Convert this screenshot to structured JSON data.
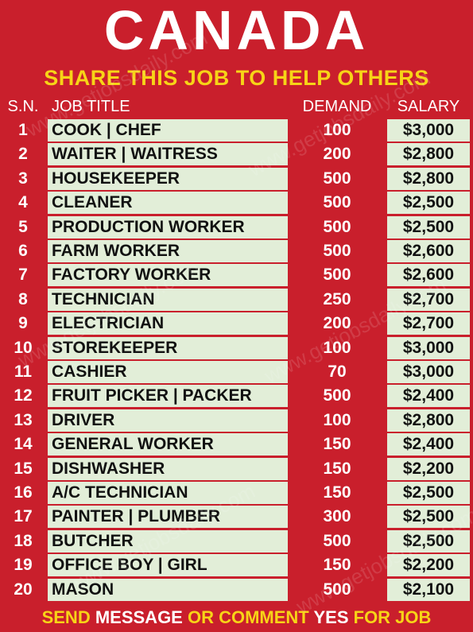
{
  "header": {
    "title": "CANADA",
    "subtitle": "SHARE THIS JOB TO HELP OTHERS"
  },
  "table": {
    "columns": [
      "S.N.",
      "JOB TITLE",
      "DEMAND",
      "SALARY"
    ],
    "rows": [
      [
        "1",
        "COOK | CHEF",
        "100",
        "$3,000"
      ],
      [
        "2",
        "WAITER | WAITRESS",
        "200",
        "$2,800"
      ],
      [
        "3",
        "HOUSEKEEPER",
        "500",
        "$2,800"
      ],
      [
        "4",
        "CLEANER",
        "500",
        "$2,500"
      ],
      [
        "5",
        "PRODUCTION WORKER",
        "500",
        "$2,500"
      ],
      [
        "6",
        "FARM WORKER",
        "500",
        "$2,600"
      ],
      [
        "7",
        "FACTORY WORKER",
        "500",
        "$2,600"
      ],
      [
        "8",
        "TECHNICIAN",
        "250",
        "$2,700"
      ],
      [
        "9",
        "ELECTRICIAN",
        "200",
        "$2,700"
      ],
      [
        "10",
        "STOREKEEPER",
        "100",
        "$3,000"
      ],
      [
        "11",
        "CASHIER",
        "70",
        "$3,000"
      ],
      [
        "12",
        "FRUIT PICKER | PACKER",
        "500",
        "$2,400"
      ],
      [
        "13",
        "DRIVER",
        "100",
        "$2,800"
      ],
      [
        "14",
        "GENERAL WORKER",
        "150",
        "$2,400"
      ],
      [
        "15",
        "DISHWASHER",
        "150",
        "$2,200"
      ],
      [
        "16",
        "A/C TECHNICIAN",
        "150",
        "$2,500"
      ],
      [
        "17",
        "PAINTER | PLUMBER",
        "300",
        "$2,500"
      ],
      [
        "18",
        "BUTCHER",
        "500",
        "$2,500"
      ],
      [
        "19",
        "OFFICE BOY | GIRL",
        "150",
        "$2,200"
      ],
      [
        "20",
        "MASON",
        "500",
        "$2,100"
      ]
    ]
  },
  "footer": [
    "SEND",
    "MESSAGE",
    "OR COMMENT",
    "YES",
    "FOR JOB"
  ],
  "watermark": "www.getjobsdaily.com"
}
